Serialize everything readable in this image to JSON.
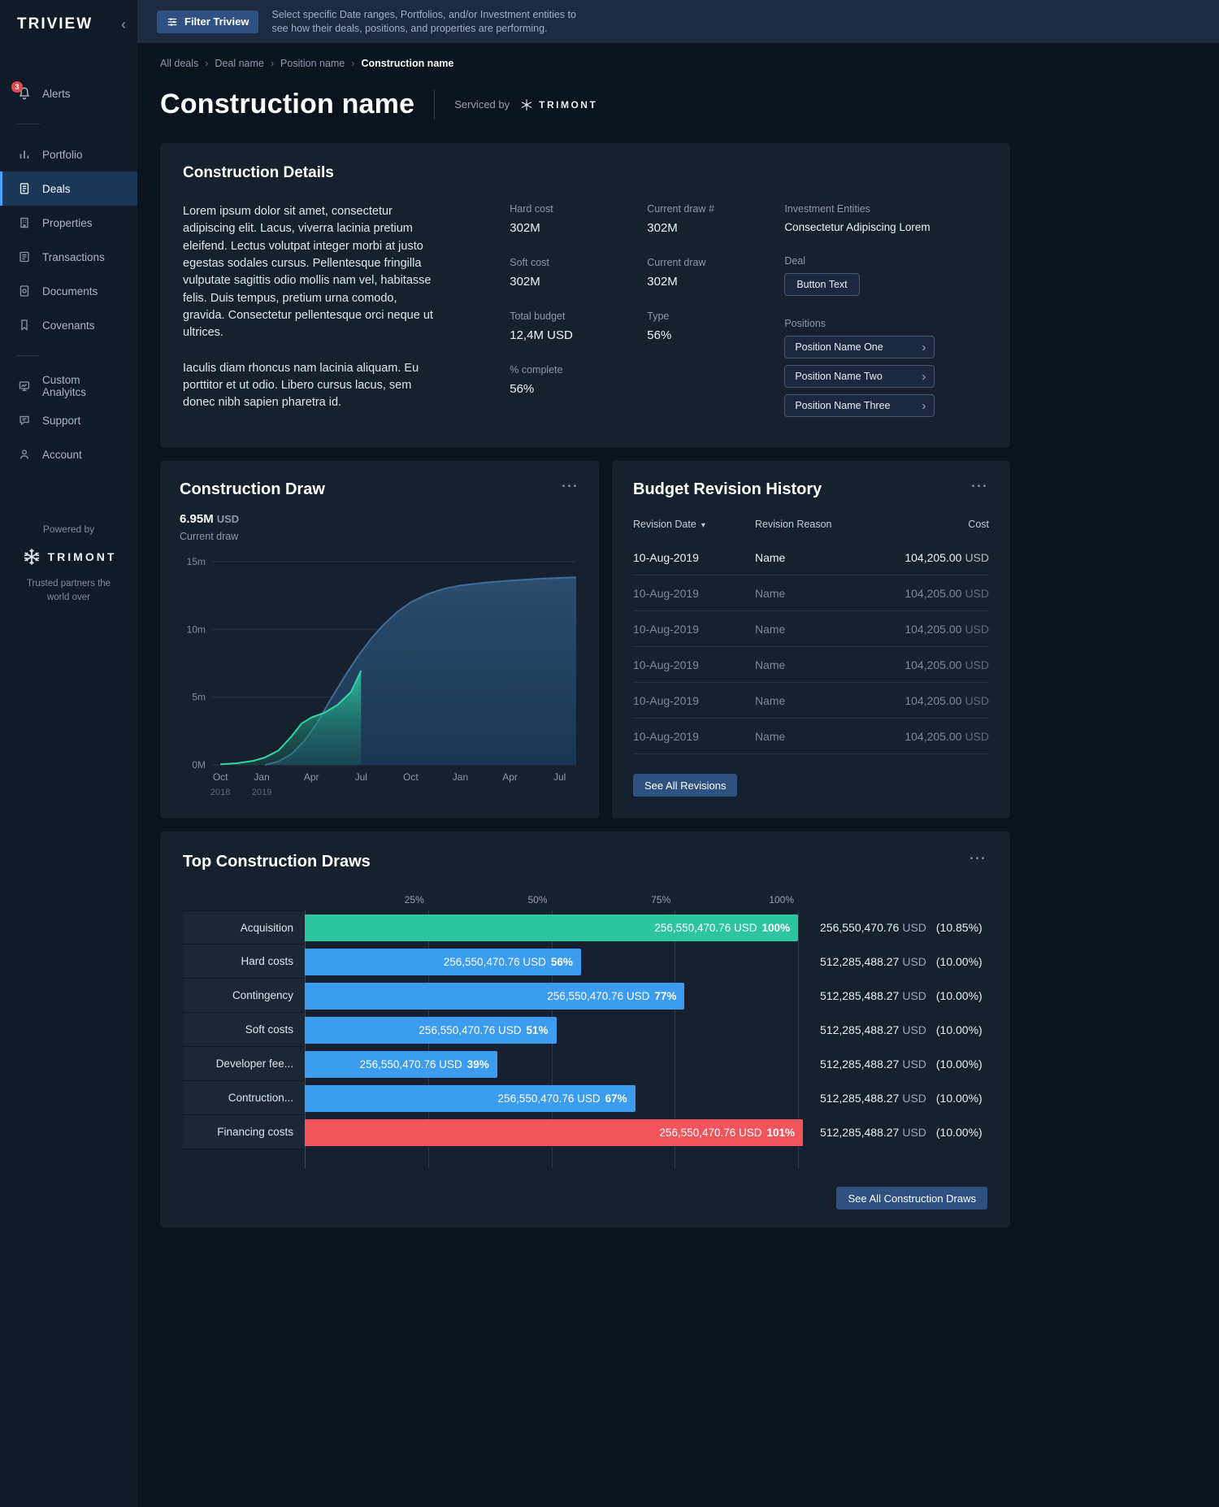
{
  "app": {
    "logo": "TRIVIEW"
  },
  "icons": {
    "more": "⋯",
    "chevron_right": "›",
    "sort_desc": "▾",
    "collapse": "‹"
  },
  "header": {
    "filter_button": "Filter Triview",
    "description": "Select specific Date ranges, Portfolios, and/or Investment entities to see how their deals, positions, and properties are performing."
  },
  "breadcrumb": {
    "items": [
      {
        "label": "All deals",
        "separator": "›"
      },
      {
        "label": "Deal name",
        "separator": "›"
      },
      {
        "label": "Position name",
        "separator": "›"
      }
    ],
    "current": "Construction name"
  },
  "page": {
    "title": "Construction name",
    "serviced_by": "Serviced by",
    "servicer": "TRIMONT"
  },
  "sidebar": {
    "alerts": {
      "label": "Alerts",
      "badge": "3"
    },
    "nav": {
      "portfolio": "Portfolio",
      "deals": "Deals",
      "properties": "Properties",
      "transactions": "Transactions",
      "documents": "Documents",
      "covenants": "Covenants",
      "custom_analytics": "Custom Analyitcs",
      "support": "Support",
      "account": "Account"
    },
    "powered_by": "Powered by",
    "brand": "TRIMONT",
    "tagline": "Trusted partners the world over"
  },
  "details": {
    "title": "Construction Details",
    "paragraphs": {
      "p1": "Lorem ipsum dolor sit amet, consectetur adipiscing elit. Lacus, viverra lacinia pretium eleifend. Lectus volutpat integer morbi at justo egestas sodales cursus. Pellentesque fringilla vulputate sagittis odio mollis nam vel, habitasse felis. Duis tempus, pretium urna comodo, gravida. Consectetur pellentesque orci neque ut ultrices.",
      "p2": "Iaculis diam rhoncus nam lacinia aliquam. Eu porttitor et ut odio. Libero cursus lacus, sem donec nibh sapien pharetra id."
    },
    "col1": [
      {
        "label": "Hard cost",
        "value": "302M"
      },
      {
        "label": "Soft cost",
        "value": "302M"
      },
      {
        "label": "Total budget",
        "value": "12,4M USD"
      },
      {
        "label": "% complete",
        "value": "56%"
      }
    ],
    "col2": [
      {
        "label": "Current draw #",
        "value": "302M"
      },
      {
        "label": "Current draw",
        "value": "302M"
      },
      {
        "label": "Type",
        "value": "56%"
      }
    ],
    "investment": {
      "label": "Investment Entities",
      "value": "Consectetur Adipiscing Lorem"
    },
    "deal": {
      "label": "Deal",
      "button": "Button Text"
    },
    "positions": {
      "label": "Positions",
      "items": [
        {
          "label": "Position Name One"
        },
        {
          "label": "Position Name Two"
        },
        {
          "label": "Position Name Three"
        }
      ]
    }
  },
  "construction_draw": {
    "title": "Construction Draw",
    "amount": "6.95M",
    "currency": "USD",
    "subtitle": "Current draw",
    "chart_data": {
      "type": "area",
      "title": "Construction Draw",
      "ylim": [
        0,
        15
      ],
      "xlim": [
        0,
        22
      ],
      "y_ticks": [
        {
          "value": 0,
          "label": "0M"
        },
        {
          "value": 5,
          "label": "5m"
        },
        {
          "value": 10,
          "label": "10m"
        },
        {
          "value": 15,
          "label": "15m"
        }
      ],
      "x_ticks": [
        {
          "pos": 0.5,
          "label": "Oct",
          "year": "2018"
        },
        {
          "pos": 3,
          "label": "Jan",
          "year": "2019"
        },
        {
          "pos": 6,
          "label": "Apr"
        },
        {
          "pos": 9,
          "label": "Jul"
        },
        {
          "pos": 12,
          "label": "Oct"
        },
        {
          "pos": 15,
          "label": "Jan"
        },
        {
          "pos": 18,
          "label": "Apr"
        },
        {
          "pos": 21,
          "label": "Jul"
        }
      ],
      "series": [
        {
          "name": "total-budget-draw",
          "line": "#3f6d99",
          "gradient": {
            "top": "#2c4f72",
            "top_opacity": 0.95,
            "bottom": "#1c3855",
            "bottom_opacity": 0.9
          },
          "points": [
            [
              3.2,
              0
            ],
            [
              4,
              0.25
            ],
            [
              4.8,
              0.8
            ],
            [
              5.6,
              1.8
            ],
            [
              6.4,
              3.2
            ],
            [
              7.2,
              4.9
            ],
            [
              8,
              6.5
            ],
            [
              8.8,
              8.0
            ],
            [
              9.6,
              9.3
            ],
            [
              10.4,
              10.4
            ],
            [
              11.2,
              11.3
            ],
            [
              12,
              12.0
            ],
            [
              13,
              12.6
            ],
            [
              14,
              13.0
            ],
            [
              15,
              13.25
            ],
            [
              16.5,
              13.45
            ],
            [
              18,
              13.6
            ],
            [
              20,
              13.75
            ],
            [
              22,
              13.85
            ]
          ]
        },
        {
          "name": "current-draw",
          "line": "#30d6a8",
          "gradient": {
            "top": "#2cc9a1",
            "top_opacity": 0.9,
            "bottom": "#1b6e5e",
            "bottom_opacity": 0.3
          },
          "points": [
            [
              0.5,
              0.04
            ],
            [
              1.5,
              0.12
            ],
            [
              2.5,
              0.3
            ],
            [
              3.2,
              0.55
            ],
            [
              4,
              1.05
            ],
            [
              4.8,
              2.1
            ],
            [
              5.4,
              3.05
            ],
            [
              6,
              3.5
            ],
            [
              6.8,
              3.85
            ],
            [
              7.6,
              4.45
            ],
            [
              8.4,
              5.4
            ],
            [
              9,
              6.95
            ]
          ]
        }
      ]
    }
  },
  "revision_history": {
    "title": "Budget Revision History",
    "columns": {
      "date": "Revision Date",
      "reason": "Revision Reason",
      "cost": "Cost"
    },
    "rows": [
      {
        "date": "10-Aug-2019",
        "reason": "Name",
        "cost": "104,205.00",
        "currency": "USD",
        "state": "bright"
      },
      {
        "date": "10-Aug-2019",
        "reason": "Name",
        "cost": "104,205.00",
        "currency": "USD",
        "state": "dim"
      },
      {
        "date": "10-Aug-2019",
        "reason": "Name",
        "cost": "104,205.00",
        "currency": "USD",
        "state": "dim"
      },
      {
        "date": "10-Aug-2019",
        "reason": "Name",
        "cost": "104,205.00",
        "currency": "USD",
        "state": "dim"
      },
      {
        "date": "10-Aug-2019",
        "reason": "Name",
        "cost": "104,205.00",
        "currency": "USD",
        "state": "dim"
      },
      {
        "date": "10-Aug-2019",
        "reason": "Name",
        "cost": "104,205.00",
        "currency": "USD",
        "state": "dim"
      }
    ],
    "see_all": "See All Revisions"
  },
  "top_draws": {
    "title": "Top Construction Draws",
    "chart_data": {
      "type": "bar",
      "orientation": "horizontal",
      "xlim": [
        0,
        102
      ],
      "categories": [
        "Acquisition",
        "Hard costs",
        "Contingency",
        "Soft costs",
        "Developer fee...",
        "Contruction...",
        "Financing costs"
      ],
      "values": [
        100,
        56,
        77,
        51,
        39,
        67,
        101
      ]
    },
    "axis_ticks": [
      {
        "label": "25%",
        "pct": 25
      },
      {
        "label": "50%",
        "pct": 50
      },
      {
        "label": "75%",
        "pct": 75
      },
      {
        "label": "100%",
        "pct": 100
      }
    ],
    "colors": {
      "teal": "#2cc5a0",
      "blue": "#3b9cf0",
      "red": "#f2545b"
    },
    "rows": [
      {
        "category": "Acquisition",
        "bar_value": "256,550,470.76 USD",
        "percent_label": "100%",
        "pct": 100,
        "color": "teal",
        "total": "256,550,470.76",
        "total_currency": "USD",
        "share": "(10.85%)"
      },
      {
        "category": "Hard costs",
        "bar_value": "256,550,470.76 USD",
        "percent_label": "56%",
        "pct": 56,
        "color": "blue",
        "total": "512,285,488.27",
        "total_currency": "USD",
        "share": "(10.00%)"
      },
      {
        "category": "Contingency",
        "bar_value": "256,550,470.76 USD",
        "percent_label": "77%",
        "pct": 77,
        "color": "blue",
        "total": "512,285,488.27",
        "total_currency": "USD",
        "share": "(10.00%)"
      },
      {
        "category": "Soft costs",
        "bar_value": "256,550,470.76 USD",
        "percent_label": "51%",
        "pct": 51,
        "color": "blue",
        "total": "512,285,488.27",
        "total_currency": "USD",
        "share": "(10.00%)"
      },
      {
        "category": "Developer fee...",
        "bar_value": "256,550,470.76 USD",
        "percent_label": "39%",
        "pct": 39,
        "color": "blue",
        "total": "512,285,488.27",
        "total_currency": "USD",
        "share": "(10.00%)"
      },
      {
        "category": "Contruction...",
        "bar_value": "256,550,470.76 USD",
        "percent_label": "67%",
        "pct": 67,
        "color": "blue",
        "total": "512,285,488.27",
        "total_currency": "USD",
        "share": "(10.00%)"
      },
      {
        "category": "Financing costs",
        "bar_value": "256,550,470.76 USD",
        "percent_label": "101%",
        "pct": 101,
        "color": "red",
        "total": "512,285,488.27",
        "total_currency": "USD",
        "share": "(10.00%)"
      }
    ],
    "see_all": "See All Construction Draws"
  }
}
